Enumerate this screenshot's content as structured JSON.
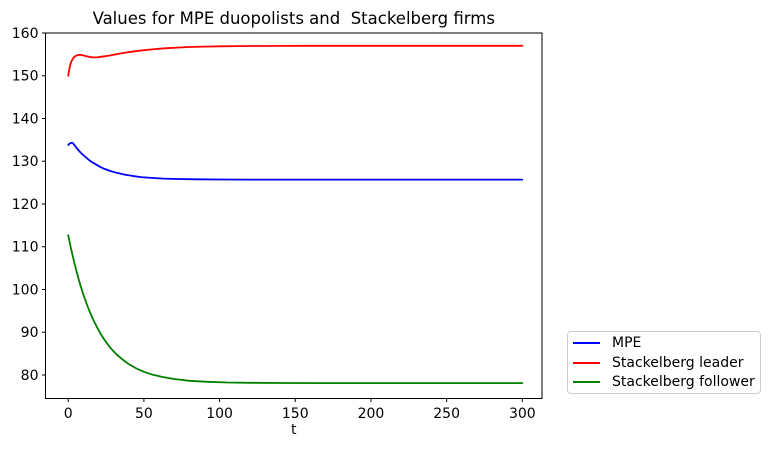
{
  "chart_data": {
    "type": "line",
    "title": "Values for MPE duopolists and  Stackelberg firms",
    "xlabel": "t",
    "ylabel": "",
    "xlim": [
      -15,
      313
    ],
    "ylim": [
      74.5,
      160.0
    ],
    "xticks": [
      0,
      50,
      100,
      150,
      200,
      250,
      300
    ],
    "yticks": [
      80,
      90,
      100,
      110,
      120,
      130,
      140,
      150,
      160
    ],
    "grid": false,
    "legend_position": "outside lower right",
    "series": [
      {
        "name": "MPE",
        "color": "#0000ff",
        "points": [
          [
            0,
            133.8
          ],
          [
            1,
            134.15
          ],
          [
            2,
            134.3
          ],
          [
            3,
            134.3
          ],
          [
            5,
            133.35
          ],
          [
            7,
            132.5
          ],
          [
            9,
            131.75
          ],
          [
            11,
            131.1
          ],
          [
            13,
            130.5
          ],
          [
            15,
            129.95
          ],
          [
            18,
            129.3
          ],
          [
            21,
            128.7
          ],
          [
            24,
            128.2
          ],
          [
            28,
            127.7
          ],
          [
            32,
            127.3
          ],
          [
            37,
            126.9
          ],
          [
            42,
            126.6
          ],
          [
            48,
            126.3
          ],
          [
            55,
            126.1
          ],
          [
            63,
            125.95
          ],
          [
            72,
            125.85
          ],
          [
            85,
            125.77
          ],
          [
            100,
            125.73
          ],
          [
            120,
            125.71
          ],
          [
            150,
            125.7
          ],
          [
            200,
            125.7
          ],
          [
            250,
            125.7
          ],
          [
            300,
            125.7
          ]
        ]
      },
      {
        "name": "Stackelberg leader",
        "color": "#ff0000",
        "points": [
          [
            0,
            150.0
          ],
          [
            0.5,
            151.1
          ],
          [
            1,
            152.0
          ],
          [
            1.5,
            152.75
          ],
          [
            2,
            153.25
          ],
          [
            3,
            153.95
          ],
          [
            4,
            154.4
          ],
          [
            5,
            154.65
          ],
          [
            6,
            154.8
          ],
          [
            7,
            154.88
          ],
          [
            8,
            154.9
          ],
          [
            9,
            154.85
          ],
          [
            10,
            154.75
          ],
          [
            12,
            154.55
          ],
          [
            14,
            154.4
          ],
          [
            16,
            154.32
          ],
          [
            18,
            154.3
          ],
          [
            20,
            154.35
          ],
          [
            22,
            154.45
          ],
          [
            24,
            154.55
          ],
          [
            27,
            154.72
          ],
          [
            30,
            154.92
          ],
          [
            34,
            155.18
          ],
          [
            38,
            155.42
          ],
          [
            42,
            155.62
          ],
          [
            47,
            155.85
          ],
          [
            52,
            156.05
          ],
          [
            58,
            156.25
          ],
          [
            65,
            156.45
          ],
          [
            72,
            156.58
          ],
          [
            80,
            156.72
          ],
          [
            90,
            156.82
          ],
          [
            100,
            156.89
          ],
          [
            112,
            156.94
          ],
          [
            126,
            156.97
          ],
          [
            142,
            156.99
          ],
          [
            160,
            157.0
          ],
          [
            190,
            157.0
          ],
          [
            230,
            157.0
          ],
          [
            270,
            157.0
          ],
          [
            300,
            157.0
          ]
        ]
      },
      {
        "name": "Stackelberg follower",
        "color": "#008000",
        "points": [
          [
            0,
            112.7
          ],
          [
            2,
            109.35
          ],
          [
            4,
            106.3
          ],
          [
            6,
            103.55
          ],
          [
            8,
            101.05
          ],
          [
            10,
            98.85
          ],
          [
            12,
            96.8
          ],
          [
            14,
            95.0
          ],
          [
            16,
            93.35
          ],
          [
            19,
            91.15
          ],
          [
            22,
            89.3
          ],
          [
            25,
            87.7
          ],
          [
            28,
            86.3
          ],
          [
            32,
            84.8
          ],
          [
            36,
            83.6
          ],
          [
            40,
            82.55
          ],
          [
            45,
            81.55
          ],
          [
            50,
            80.75
          ],
          [
            56,
            80.05
          ],
          [
            62,
            79.55
          ],
          [
            70,
            79.05
          ],
          [
            80,
            78.65
          ],
          [
            92,
            78.4
          ],
          [
            105,
            78.25
          ],
          [
            120,
            78.17
          ],
          [
            140,
            78.13
          ],
          [
            170,
            78.11
          ],
          [
            200,
            78.1
          ],
          [
            250,
            78.1
          ],
          [
            300,
            78.1
          ]
        ]
      }
    ]
  },
  "legend": {
    "entries": [
      {
        "label": "MPE",
        "color": "#0000ff"
      },
      {
        "label": "Stackelberg leader",
        "color": "#ff0000"
      },
      {
        "label": "Stackelberg follower",
        "color": "#008000"
      }
    ]
  },
  "colors": {
    "axis": "#000000",
    "legend_border": "#cccccc",
    "background": "#ffffff"
  }
}
